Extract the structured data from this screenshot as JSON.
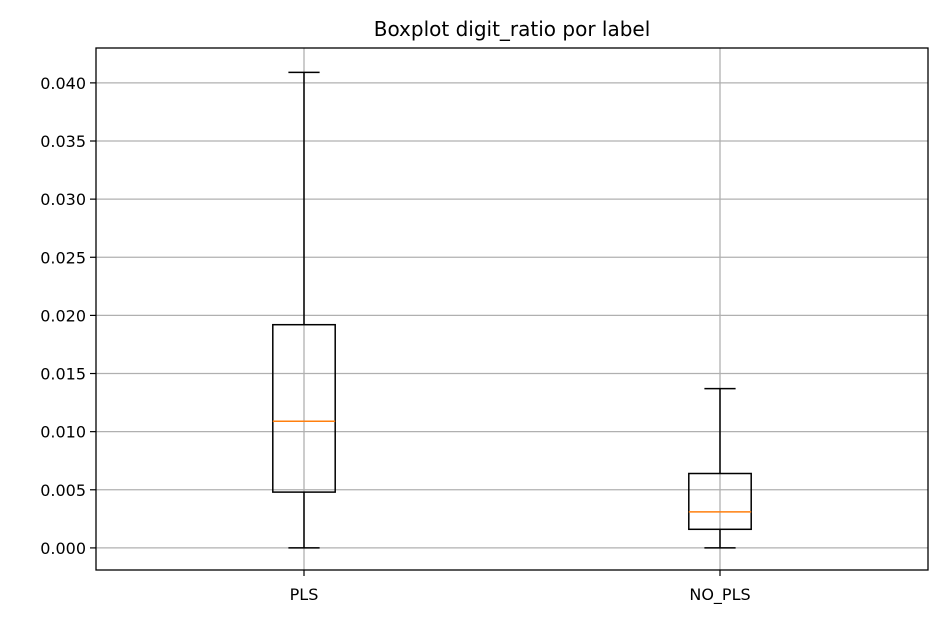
{
  "chart_data": {
    "type": "box",
    "title": "Boxplot digit_ratio por label",
    "xlabel": "",
    "ylabel": "",
    "categories": [
      "PLS",
      "NO_PLS"
    ],
    "boxes": [
      {
        "category": "PLS",
        "whisker_low": 0.0,
        "q1": 0.0048,
        "median": 0.0109,
        "q3": 0.0192,
        "whisker_high": 0.0409
      },
      {
        "category": "NO_PLS",
        "whisker_low": 0.0,
        "q1": 0.0016,
        "median": 0.0031,
        "q3": 0.0064,
        "whisker_high": 0.0137
      }
    ],
    "ylim": [
      -0.0019,
      0.043
    ],
    "yticks": [
      0.0,
      0.005,
      0.01,
      0.015,
      0.02,
      0.025,
      0.03,
      0.035,
      0.04
    ],
    "ytick_labels": [
      "0.000",
      "0.005",
      "0.010",
      "0.015",
      "0.020",
      "0.025",
      "0.030",
      "0.035",
      "0.040"
    ],
    "grid": true,
    "colors": {
      "box": "#000000",
      "median": "#ff7f0e",
      "grid": "#b0b0b0",
      "background": "#ffffff"
    }
  }
}
